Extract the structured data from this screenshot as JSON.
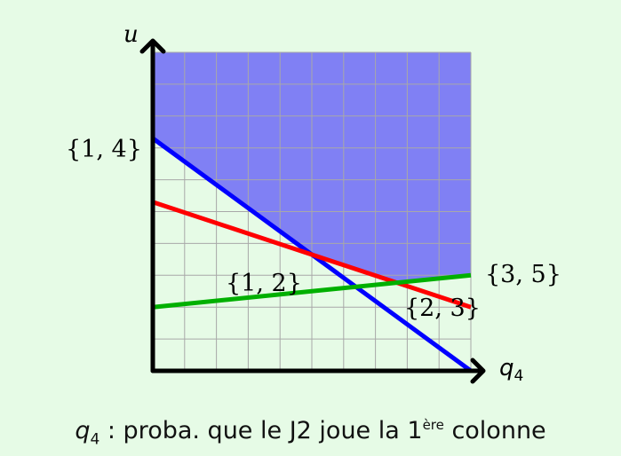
{
  "axes": {
    "y_label": "u",
    "x_label": "q",
    "x_label_sub": "4"
  },
  "grid": true,
  "region_color": "#8080f4",
  "lines": [
    {
      "label": "{1, 4}",
      "color": "#0000ff",
      "y_start": 7.3,
      "y_end": 0
    },
    {
      "label": "{2, 3}",
      "color": "#ff0000",
      "y_start": 5.3,
      "y_end": 2.0
    },
    {
      "label": "{3, 5}",
      "color": "#00b000",
      "y_start": 2.0,
      "y_end": 3.0
    }
  ],
  "point_labels": {
    "left": "{1, 4}",
    "middle": "{1, 2}",
    "right_top": "{3, 5}",
    "right_bottom": "{2, 3}"
  },
  "caption": {
    "var": "q",
    "var_sub": "4",
    "text": " : proba. que le J2 joue la 1",
    "sup": "ère",
    "tail": " colonne"
  }
}
